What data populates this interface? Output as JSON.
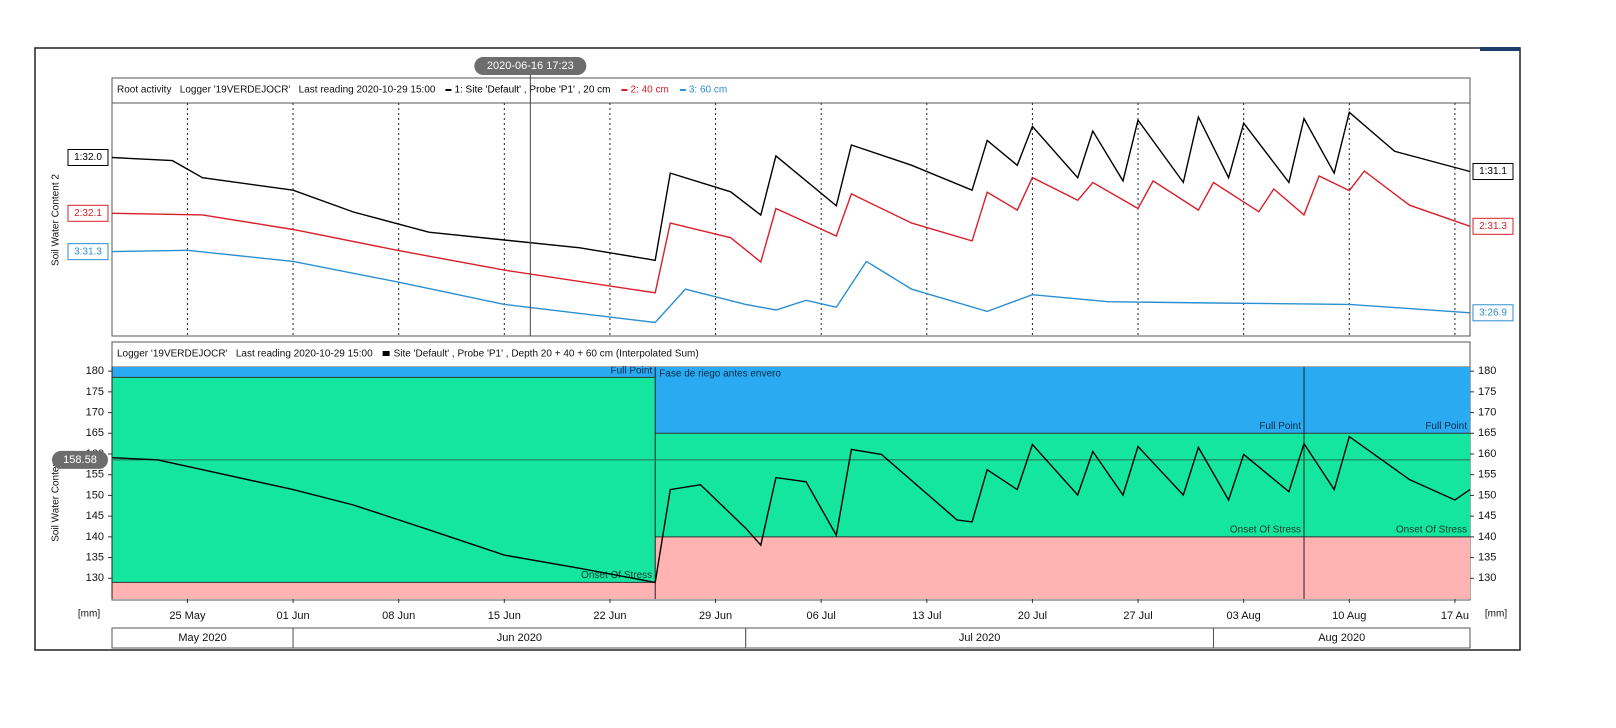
{
  "cursor": "2020-06-16 17:23",
  "chart_data": [
    {
      "type": "line",
      "title": "Root activity   Logger '19VERDEJOCR'   Last reading 2020-10-29 15:00",
      "ylabel": "Soil Water Content 2",
      "xlim": [
        "2020-05-20",
        "2020-08-18"
      ],
      "grid": true,
      "series": [
        {
          "name": "1: Site 'Default' , Probe 'P1' , 20 cm",
          "color": "#000000",
          "ylim": [
            20.6,
            35.5
          ],
          "x": [
            "2020-05-20",
            "2020-05-24",
            "2020-05-26",
            "2020-06-01",
            "2020-06-05",
            "2020-06-10",
            "2020-06-15",
            "2020-06-20",
            "2020-06-25",
            "2020-06-26",
            "2020-06-30",
            "2020-07-02",
            "2020-07-03",
            "2020-07-07",
            "2020-07-08",
            "2020-07-12",
            "2020-07-16",
            "2020-07-17",
            "2020-07-19",
            "2020-07-20",
            "2020-07-23",
            "2020-07-24",
            "2020-07-26",
            "2020-07-27",
            "2020-07-30",
            "2020-07-31",
            "2020-08-02",
            "2020-08-03",
            "2020-08-06",
            "2020-08-07",
            "2020-08-09",
            "2020-08-10",
            "2020-08-13",
            "2020-08-18"
          ],
          "values": [
            32.0,
            31.8,
            30.7,
            29.9,
            28.5,
            27.2,
            26.7,
            26.2,
            25.4,
            31.0,
            29.8,
            28.3,
            32.1,
            28.9,
            32.8,
            31.5,
            29.9,
            33.1,
            31.5,
            34.0,
            30.7,
            33.7,
            30.5,
            34.4,
            30.4,
            34.6,
            30.7,
            34.2,
            30.4,
            34.5,
            31.0,
            34.9,
            32.4,
            31.1
          ],
          "value_labels": [
            "1:32.0",
            null,
            null,
            null,
            null,
            null,
            null,
            null,
            null,
            null,
            null,
            null,
            null,
            null,
            null,
            null,
            null,
            null,
            null,
            null,
            null,
            null,
            null,
            null,
            null,
            null,
            null,
            null,
            null,
            null,
            null,
            null,
            null,
            "1:31.1"
          ]
        },
        {
          "name": "2: 40 cm",
          "color": "#d9202a",
          "ylim": [
            24.6,
            38.9
          ],
          "x": [
            "2020-05-20",
            "2020-05-26",
            "2020-06-01",
            "2020-06-08",
            "2020-06-15",
            "2020-06-25",
            "2020-06-26",
            "2020-06-30",
            "2020-07-02",
            "2020-07-03",
            "2020-07-07",
            "2020-07-08",
            "2020-07-12",
            "2020-07-16",
            "2020-07-17",
            "2020-07-19",
            "2020-07-20",
            "2020-07-23",
            "2020-07-24",
            "2020-07-27",
            "2020-07-28",
            "2020-07-31",
            "2020-08-01",
            "2020-08-04",
            "2020-08-05",
            "2020-08-07",
            "2020-08-08",
            "2020-08-10",
            "2020-08-11",
            "2020-08-14",
            "2020-08-18"
          ],
          "values": [
            32.1,
            32.0,
            31.1,
            29.8,
            28.6,
            27.2,
            31.5,
            30.6,
            29.1,
            32.4,
            30.7,
            33.3,
            31.5,
            30.4,
            33.4,
            32.3,
            34.3,
            32.9,
            34.0,
            32.4,
            34.1,
            32.3,
            34.0,
            32.2,
            33.6,
            32.0,
            34.4,
            33.5,
            34.7,
            32.6,
            31.3
          ],
          "value_labels": [
            "2:32.1",
            null,
            null,
            null,
            null,
            null,
            null,
            null,
            null,
            null,
            null,
            null,
            null,
            null,
            null,
            null,
            null,
            null,
            null,
            null,
            null,
            null,
            null,
            null,
            null,
            null,
            null,
            null,
            null,
            null,
            "2:31.3"
          ]
        },
        {
          "name": "3: 60 cm",
          "color": "#2a8fd0",
          "ylim": [
            25.3,
            42.0
          ],
          "x": [
            "2020-05-20",
            "2020-05-25",
            "2020-06-01",
            "2020-06-08",
            "2020-06-15",
            "2020-06-25",
            "2020-06-27",
            "2020-07-01",
            "2020-07-03",
            "2020-07-05",
            "2020-07-07",
            "2020-07-09",
            "2020-07-12",
            "2020-07-17",
            "2020-07-20",
            "2020-07-25",
            "2020-08-01",
            "2020-08-10",
            "2020-08-18"
          ],
          "values": [
            31.3,
            31.4,
            30.6,
            29.1,
            27.5,
            26.2,
            28.6,
            27.5,
            27.1,
            27.8,
            27.3,
            30.6,
            28.6,
            27.0,
            28.2,
            27.7,
            27.6,
            27.5,
            26.9
          ],
          "value_labels": [
            "3:31.3",
            null,
            null,
            null,
            null,
            null,
            null,
            null,
            null,
            null,
            null,
            null,
            null,
            null,
            null,
            null,
            null,
            null,
            "3:26.9"
          ]
        }
      ]
    },
    {
      "type": "line",
      "title": "Logger '19VERDEJOCR'   Last reading 2020-10-29 15:00",
      "ylabel": "Soil Water Content",
      "yunit": "[mm]",
      "xlim": [
        "2020-05-20",
        "2020-08-18"
      ],
      "ylim": [
        125,
        181
      ],
      "yticks": [
        130,
        135,
        140,
        145,
        150,
        155,
        160,
        165,
        170,
        175,
        180
      ],
      "xticks": [
        {
          "value": "2020-05-25",
          "label": "25 May"
        },
        {
          "value": "2020-06-01",
          "label": "01 Jun"
        },
        {
          "value": "2020-06-08",
          "label": "08 Jun"
        },
        {
          "value": "2020-06-15",
          "label": "15 Jun"
        },
        {
          "value": "2020-06-22",
          "label": "22 Jun"
        },
        {
          "value": "2020-06-29",
          "label": "29 Jun"
        },
        {
          "value": "2020-07-06",
          "label": "06 Jul"
        },
        {
          "value": "2020-07-13",
          "label": "13 Jul"
        },
        {
          "value": "2020-07-20",
          "label": "20 Jul"
        },
        {
          "value": "2020-07-27",
          "label": "27 Jul"
        },
        {
          "value": "2020-08-03",
          "label": "03 Aug"
        },
        {
          "value": "2020-08-10",
          "label": "10 Aug"
        },
        {
          "value": "2020-08-17",
          "label": "17 Au"
        }
      ],
      "months": [
        {
          "value": "2020-05-20",
          "label": "May 2020"
        },
        {
          "value": "2020-06-01",
          "label": "Jun 2020"
        },
        {
          "value": "2020-07-01",
          "label": "Jul 2020"
        },
        {
          "value": "2020-08-01",
          "label": "Aug 2020"
        }
      ],
      "crosshair": 158.58,
      "zone_colors": {
        "stress": "#ffb3b3",
        "ok": "#14e6a0",
        "excess": "#2aaaf0"
      },
      "zones": [
        {
          "start": "2020-05-20",
          "end": "2020-06-25",
          "onset": 129,
          "full": 178.5,
          "onset_label": "Onset Of Stress",
          "full_label": "Full Point"
        },
        {
          "start": "2020-06-25",
          "end": "2020-08-07",
          "onset": 140,
          "full": 165,
          "onset_label": "Onset Of Stress",
          "full_label": "Full Point",
          "name": "Fase de riego antes envero"
        },
        {
          "start": "2020-08-07",
          "end": "2020-08-18",
          "onset": 140,
          "full": 165,
          "onset_label": "Onset Of Stress",
          "full_label": "Full Point"
        }
      ],
      "series": [
        {
          "name": "Site 'Default' , Probe 'P1' , Depth 20 + 40 + 60 cm (Interpolated Sum)",
          "color": "#000000",
          "x": [
            "2020-05-20",
            "2020-05-23",
            "2020-05-26",
            "2020-06-01",
            "2020-06-05",
            "2020-06-10",
            "2020-06-15",
            "2020-06-20",
            "2020-06-25",
            "2020-06-26",
            "2020-06-28",
            "2020-07-01",
            "2020-07-02",
            "2020-07-03",
            "2020-07-05",
            "2020-07-07",
            "2020-07-08",
            "2020-07-10",
            "2020-07-15",
            "2020-07-16",
            "2020-07-17",
            "2020-07-19",
            "2020-07-20",
            "2020-07-23",
            "2020-07-24",
            "2020-07-26",
            "2020-07-27",
            "2020-07-30",
            "2020-07-31",
            "2020-08-02",
            "2020-08-03",
            "2020-08-06",
            "2020-08-07",
            "2020-08-09",
            "2020-08-10",
            "2020-08-14",
            "2020-08-17",
            "2020-08-18"
          ],
          "values": [
            159.1,
            158.6,
            156.2,
            151.4,
            147.7,
            141.7,
            135.6,
            132.4,
            129.0,
            151.4,
            152.6,
            142.1,
            138.0,
            154.3,
            153.3,
            140.4,
            161.1,
            159.9,
            144.1,
            143.6,
            156.2,
            151.4,
            162.3,
            150.1,
            160.6,
            150.1,
            161.8,
            150.1,
            161.6,
            148.9,
            159.9,
            150.9,
            162.5,
            151.4,
            164.2,
            153.8,
            148.9,
            151.4
          ]
        }
      ]
    }
  ]
}
